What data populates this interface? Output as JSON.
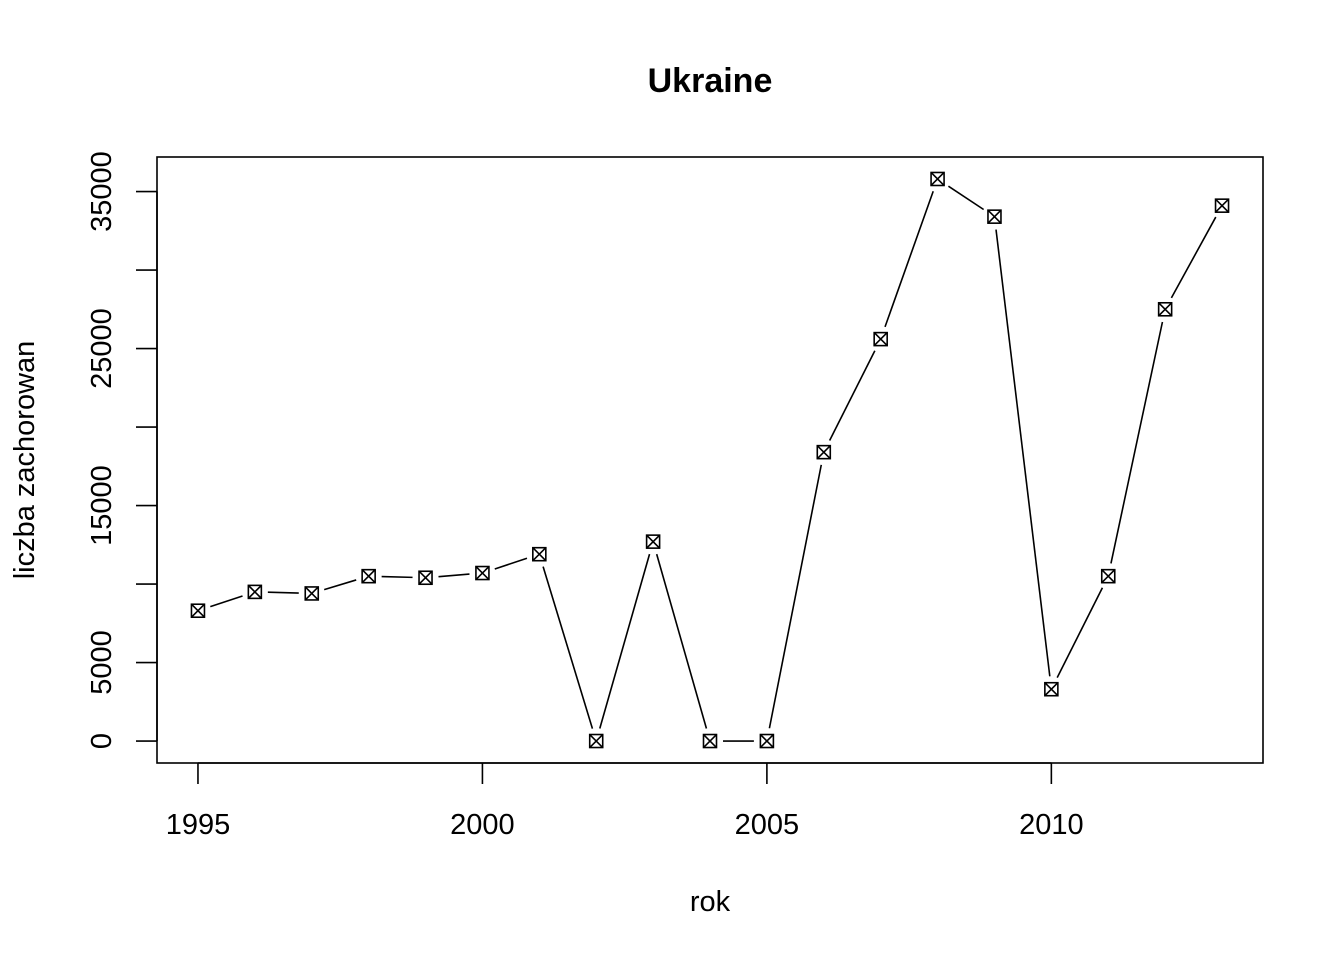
{
  "chart_data": {
    "type": "line",
    "title": "Ukraine",
    "xlabel": "rok",
    "ylabel": "liczba zachorowan",
    "x": [
      1995,
      1996,
      1997,
      1998,
      1999,
      2000,
      2001,
      2002,
      2003,
      2004,
      2005,
      2006,
      2007,
      2008,
      2009,
      2010,
      2011,
      2012,
      2013
    ],
    "series": [
      {
        "values": [
          8300,
          9500,
          9400,
          10500,
          10400,
          10700,
          11900,
          0,
          12700,
          0,
          0,
          18400,
          25600,
          35800,
          33400,
          3300,
          10500,
          27500,
          34100
        ]
      }
    ],
    "xlim": [
      1994.28,
      2013.72
    ],
    "ylim": [
      -1400,
      37200
    ],
    "xticks": [
      1995,
      2000,
      2005,
      2010
    ],
    "xtick_labels": [
      "1995",
      "2000",
      "2005",
      "2010"
    ],
    "yticks": [
      0,
      5000,
      10000,
      15000,
      20000,
      25000,
      30000,
      35000
    ],
    "ytick_labels": [
      "0",
      "5000",
      "",
      "15000",
      "",
      "25000",
      "",
      "35000"
    ],
    "marker": "boxed-x",
    "line_style": "solid with gaps at points",
    "grid": false,
    "legend": "none",
    "colors": {
      "line": "#000000",
      "background": "#ffffff"
    }
  }
}
